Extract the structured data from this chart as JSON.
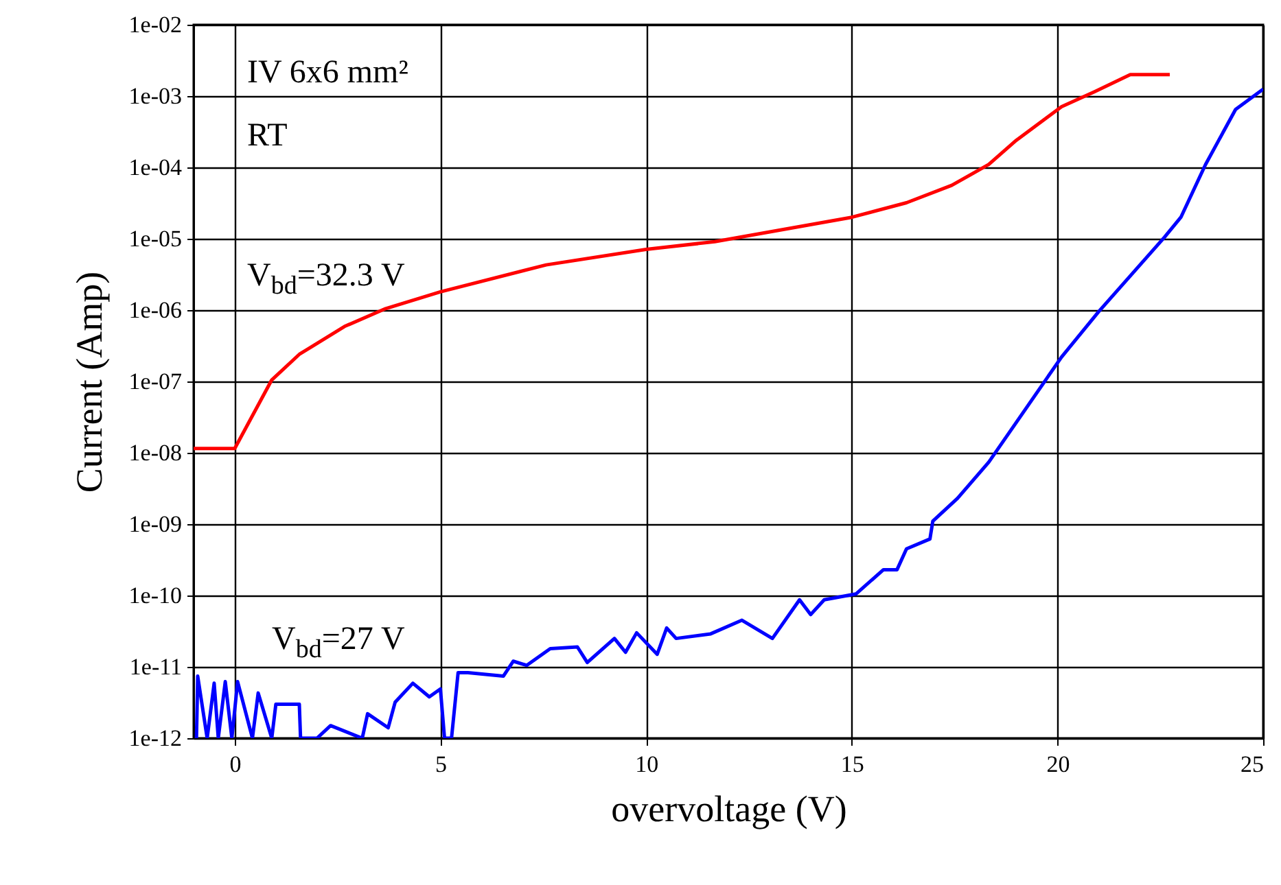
{
  "chart_data": {
    "type": "line",
    "xlabel": "overvoltage (V)",
    "ylabel": "Current (Amp)",
    "log": "y",
    "grid": true,
    "xlim": [
      -1,
      25
    ],
    "xticks": [
      0,
      5,
      10,
      15,
      20,
      25
    ],
    "ylim": [
      1e-12,
      0.01
    ],
    "yticks": [
      {
        "value": 1e-12,
        "label": "1e-12"
      },
      {
        "value": 1e-11,
        "label": "1e-11"
      },
      {
        "value": 1e-10,
        "label": "1e-10"
      },
      {
        "value": 1e-09,
        "label": "1e-09"
      },
      {
        "value": 1e-08,
        "label": "1e-08"
      },
      {
        "value": 1e-07,
        "label": "1e-07"
      },
      {
        "value": 1e-06,
        "label": "1e-06"
      },
      {
        "value": 1e-05,
        "label": "1e-05"
      },
      {
        "value": 0.0001,
        "label": "1e-04"
      },
      {
        "value": 0.001,
        "label": "1e-03"
      },
      {
        "value": 0.01,
        "label": "1e-02"
      }
    ],
    "annotations": [
      "IV 6x6 mm²",
      "RT",
      "V$_{bd}$=32.3 V",
      "V$_{bd}$=27 V"
    ],
    "series": [
      {
        "color": "#ff0000",
        "x": [
          -1,
          0,
          0.9,
          1.57,
          2.67,
          3.67,
          5,
          7.57,
          10,
          11.67,
          15,
          16.33,
          17.43,
          18.33,
          19,
          20.1,
          20.9,
          21.77,
          22.73
        ],
        "values": [
          1.15e-08,
          1.15e-08,
          1.05e-07,
          2.4e-07,
          5.9e-07,
          1.05e-06,
          1.8e-06,
          4.3e-06,
          7.1e-06,
          9.1e-06,
          2e-05,
          3.2e-05,
          5.6e-05,
          0.00011,
          0.00024,
          0.00071,
          0.00115,
          0.002,
          0.002
        ]
      },
      {
        "color": "#0000ff",
        "x": [
          -0.93,
          -0.9,
          -0.67,
          -0.5,
          -0.4,
          -0.23,
          -0.07,
          0.07,
          0.43,
          0.57,
          0.9,
          1.0,
          1.57,
          1.6,
          2.0,
          2.33,
          3.1,
          3.23,
          3.73,
          3.9,
          4.33,
          4.73,
          5.0,
          5.1,
          5.27,
          5.43,
          5.67,
          6.53,
          6.77,
          7.1,
          7.67,
          8.33,
          8.57,
          9.23,
          9.5,
          9.77,
          10.27,
          10.5,
          10.73,
          11.57,
          12.33,
          13.07,
          13.73,
          14.0,
          14.33,
          15.1,
          15.77,
          16.1,
          16.33,
          16.9,
          16.97,
          17.57,
          18.33,
          20.1,
          21.0,
          22.6,
          23.0,
          23.6,
          24.33,
          25
        ],
        "values": [
          1e-12,
          7.4e-12,
          1e-12,
          5.9e-12,
          1e-12,
          6.2e-12,
          1e-12,
          6.2e-12,
          1e-12,
          4.3e-12,
          1e-12,
          3e-12,
          3e-12,
          1e-12,
          1e-12,
          1.5e-12,
          1e-12,
          2.2e-12,
          1.4e-12,
          3.2e-12,
          5.9e-12,
          3.8e-12,
          4.9e-12,
          1e-12,
          1e-12,
          8.3e-12,
          8.3e-12,
          7.4e-12,
          1.2e-11,
          1.05e-11,
          1.8e-11,
          1.9e-11,
          1.15e-11,
          2.5e-11,
          1.6e-11,
          3e-11,
          1.5e-11,
          3.5e-11,
          2.5e-11,
          2.9e-11,
          4.5e-11,
          2.5e-11,
          8.7e-11,
          5.4e-11,
          8.7e-11,
          1.05e-10,
          2.3e-10,
          2.3e-10,
          4.5e-10,
          6.2e-10,
          1.1e-09,
          2.3e-09,
          7.4e-09,
          2.2e-07,
          9.5e-07,
          1.05e-05,
          2e-05,
          0.00011,
          0.00065,
          0.00125
        ]
      }
    ]
  }
}
